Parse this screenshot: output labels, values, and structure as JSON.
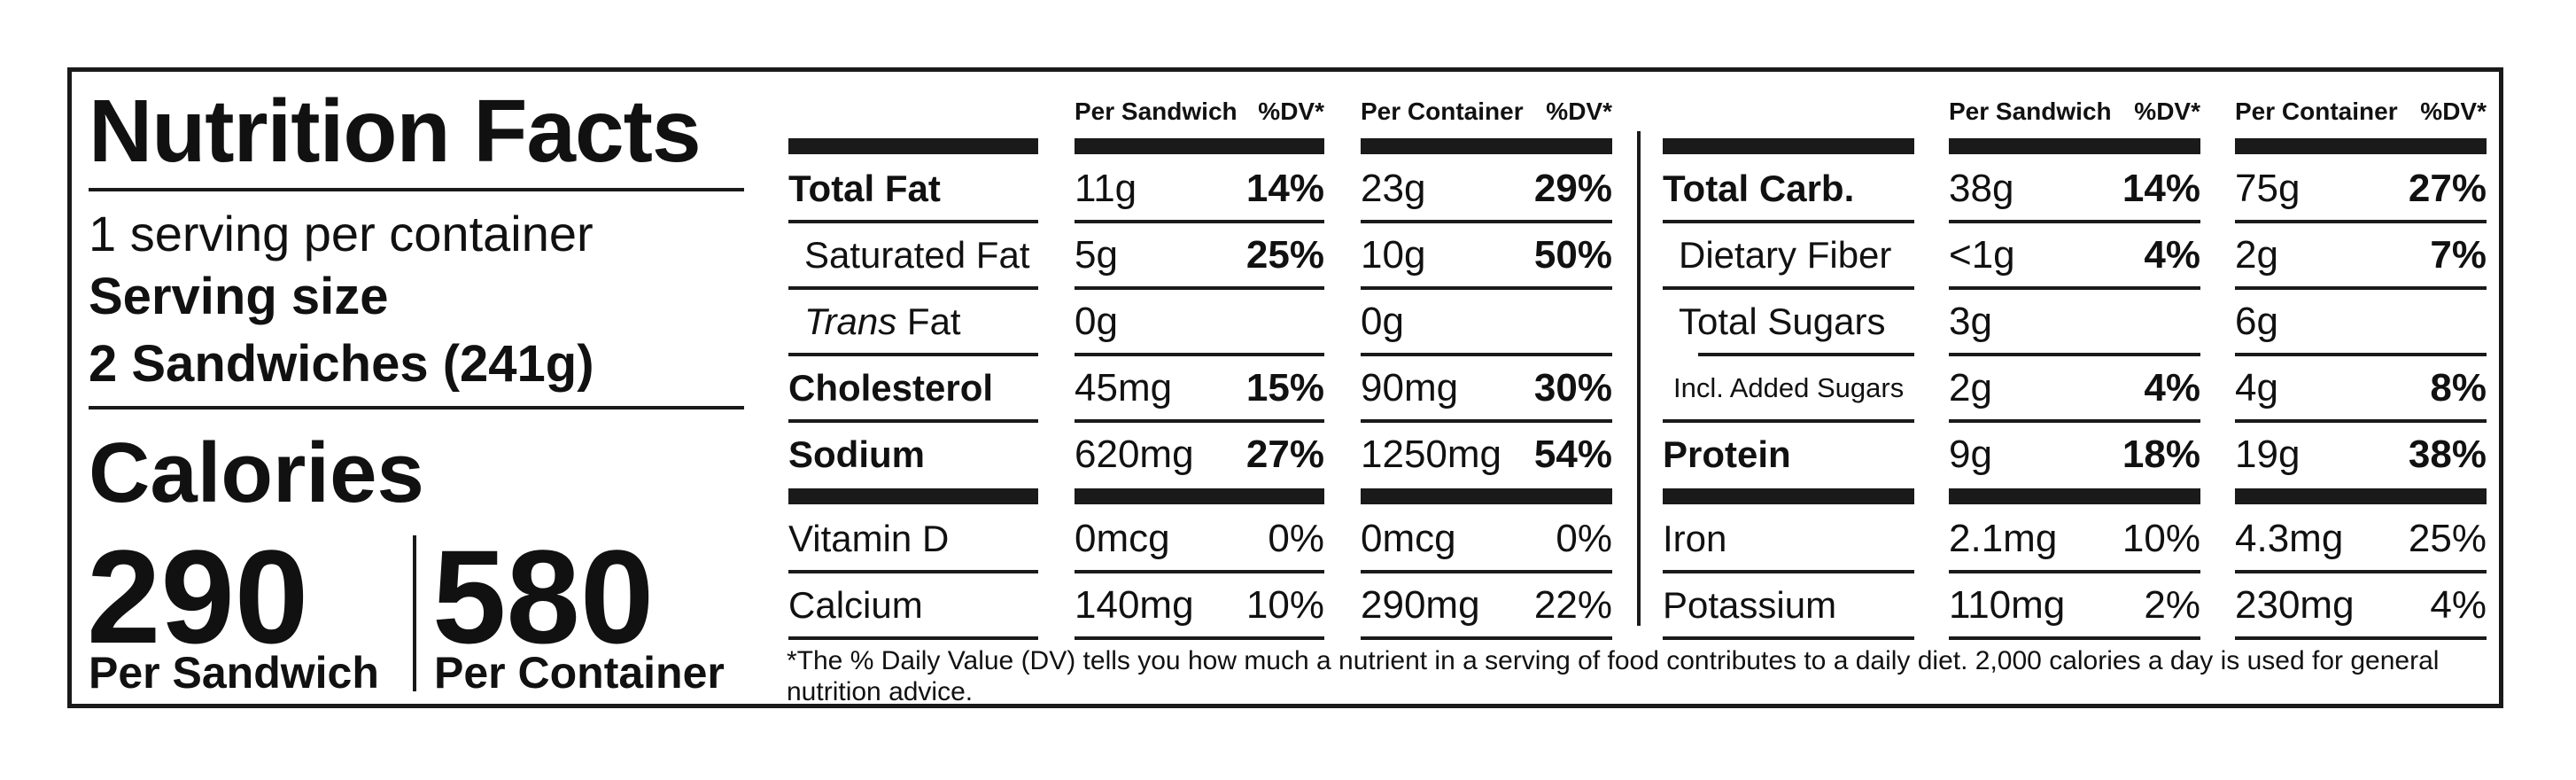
{
  "title": "Nutrition Facts",
  "servings": "1 serving per container",
  "serving_size_label": "Serving size",
  "serving_size": "2 Sandwiches (241g)",
  "calories_label": "Calories",
  "calories": [
    {
      "value": "290",
      "label": "Per Sandwich"
    },
    {
      "value": "580",
      "label": "Per Container"
    }
  ],
  "groups": [
    {
      "headers": {
        "a": "Per Sandwich",
        "a_dv": "%DV*",
        "b": "Per Container",
        "b_dv": "%DV*"
      },
      "rows": [
        {
          "label": "Total Fat",
          "style": "bold",
          "a": "11g",
          "a_dv": "14%",
          "b": "23g",
          "b_dv": "29%"
        },
        {
          "label": "Saturated Fat",
          "style": "sub",
          "a": "5g",
          "a_dv": "25%",
          "b": "10g",
          "b_dv": "50%"
        },
        {
          "label_italic": "Trans",
          "label": " Fat",
          "style": "sub",
          "a": "0g",
          "a_dv": "",
          "b": "0g",
          "b_dv": ""
        },
        {
          "label": "Cholesterol",
          "style": "bold",
          "a": "45mg",
          "a_dv": "15%",
          "b": "90mg",
          "b_dv": "30%"
        },
        {
          "label": "Sodium",
          "style": "bold",
          "a": "620mg",
          "a_dv": "27%",
          "b": "1250mg",
          "b_dv": "54%"
        }
      ],
      "vitamins": [
        {
          "label": "Vitamin D",
          "a": "0mcg",
          "a_dv": "0%",
          "b": "0mcg",
          "b_dv": "0%"
        },
        {
          "label": "Calcium",
          "a": "140mg",
          "a_dv": "10%",
          "b": "290mg",
          "b_dv": "22%"
        }
      ]
    },
    {
      "headers": {
        "a": "Per Sandwich",
        "a_dv": "%DV*",
        "b": "Per Container",
        "b_dv": "%DV*"
      },
      "rows": [
        {
          "label": "Total Carb.",
          "style": "bold",
          "a": "38g",
          "a_dv": "14%",
          "b": "75g",
          "b_dv": "27%"
        },
        {
          "label": "Dietary Fiber",
          "style": "sub",
          "a": "<1g",
          "a_dv": "4%",
          "b": "2g",
          "b_dv": "7%"
        },
        {
          "label": "Total Sugars",
          "style": "sub",
          "a": "3g",
          "a_dv": "",
          "b": "6g",
          "b_dv": ""
        },
        {
          "label": "Incl. Added Sugars",
          "style": "subsub",
          "a": "2g",
          "a_dv": "4%",
          "b": "4g",
          "b_dv": "8%"
        },
        {
          "label": "Protein",
          "style": "bold",
          "a": "9g",
          "a_dv": "18%",
          "b": "19g",
          "b_dv": "38%"
        }
      ],
      "vitamins": [
        {
          "label": "Iron",
          "a": "2.1mg",
          "a_dv": "10%",
          "b": "4.3mg",
          "b_dv": "25%"
        },
        {
          "label": "Potassium",
          "a": "110mg",
          "a_dv": "2%",
          "b": "230mg",
          "b_dv": "4%"
        }
      ]
    }
  ],
  "footnote": "*The % Daily Value (DV) tells you how much a nutrient in a serving of food contributes to a daily diet. 2,000 calories a day is used for general nutrition advice."
}
